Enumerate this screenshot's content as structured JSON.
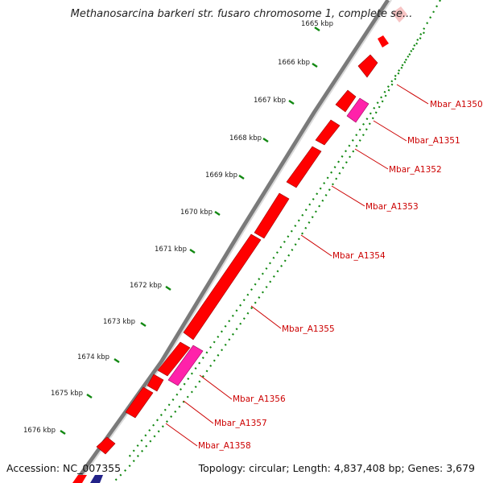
{
  "title": "Methanosarcina barkeri str. fusaro chromosome 1, complete se...",
  "footer": {
    "accession": "Accession: NC_007355",
    "summary": "Topology: circular; Length: 4,837,408 bp; Genes: 3,679"
  },
  "scale": {
    "ticks": [
      "1665 kbp",
      "1666 kbp",
      "1667 kbp",
      "1668 kbp",
      "1669 kbp",
      "1670 kbp",
      "1671 kbp",
      "1672 kbp",
      "1673 kbp",
      "1674 kbp",
      "1675 kbp",
      "1676 kbp"
    ]
  },
  "genes": [
    {
      "label": "Mbar_A1350",
      "type": "cds"
    },
    {
      "label": "Mbar_A1351",
      "type": "rna"
    },
    {
      "label": "Mbar_A1352",
      "type": "cds"
    },
    {
      "label": "Mbar_A1353",
      "type": "cds"
    },
    {
      "label": "Mbar_A1354",
      "type": "cds"
    },
    {
      "label": "Mbar_A1355",
      "type": "cds"
    },
    {
      "label": "Mbar_A1356",
      "type": "rna"
    },
    {
      "label": "Mbar_A1357",
      "type": "cds"
    },
    {
      "label": "Mbar_A1358",
      "type": "cds"
    }
  ],
  "colors": {
    "cds": "#ff0000",
    "rna": "#ff22aa",
    "backbone": "#777777",
    "gc_dots": "#118811",
    "label": "#cc0000",
    "faded_feature": "#f7c4c4"
  }
}
